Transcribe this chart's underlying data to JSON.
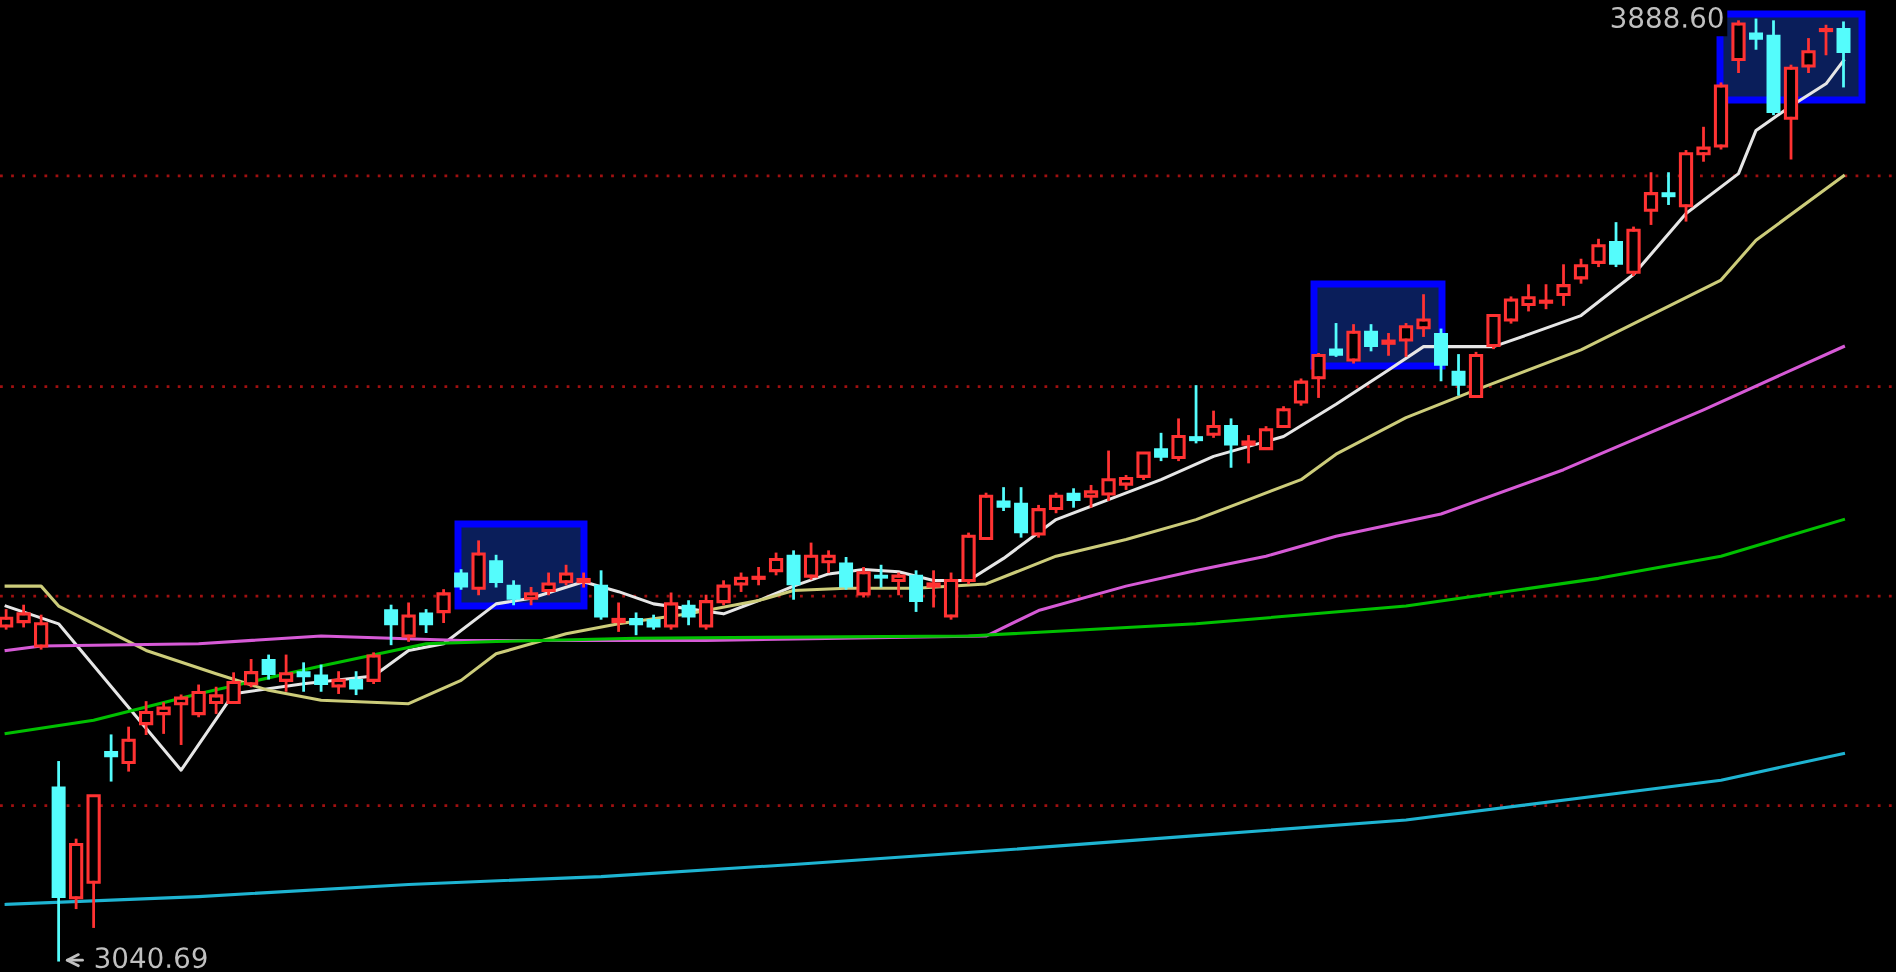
{
  "chart_data": {
    "type": "candlestick",
    "categories": [
      null,
      null,
      null,
      null,
      null,
      null,
      null,
      null,
      null,
      null,
      null,
      null,
      null,
      null,
      null,
      null,
      null,
      null,
      null,
      null,
      null,
      null,
      null,
      null,
      null,
      null,
      null,
      null,
      null,
      null,
      null,
      null,
      null,
      null,
      null,
      null,
      null,
      null,
      null,
      null,
      null,
      null,
      null,
      null,
      null,
      null,
      null,
      null,
      null,
      null,
      null,
      null,
      null,
      null,
      null,
      null,
      null,
      null,
      null,
      null,
      null,
      null,
      null,
      null,
      null,
      null,
      null,
      null,
      null,
      null,
      null,
      null,
      null,
      null,
      null,
      null,
      null,
      null,
      null,
      null,
      null,
      null,
      null,
      null,
      null,
      null,
      null,
      null,
      null,
      null,
      null,
      null,
      null,
      null,
      null,
      null,
      null,
      null,
      null,
      null,
      null,
      null,
      null,
      null,
      null,
      null
    ],
    "ohlc": [
      [
        3342,
        3356,
        3340,
        3349
      ],
      [
        3346,
        3360,
        3342,
        3353
      ],
      [
        3324,
        3351,
        3322,
        3344
      ],
      [
        3196,
        3219,
        3040.69,
        3098
      ],
      [
        3097,
        3149,
        3088,
        3145
      ],
      [
        3111,
        3189,
        3071,
        3189
      ],
      [
        3228,
        3243,
        3203,
        3225
      ],
      [
        3219,
        3250,
        3212,
        3239
      ],
      [
        3254,
        3273,
        3245,
        3264
      ],
      [
        3263,
        3272,
        3246,
        3268
      ],
      [
        3272,
        3279,
        3236,
        3277
      ],
      [
        3263,
        3288,
        3261,
        3282
      ],
      [
        3273,
        3286,
        3264,
        3279
      ],
      [
        3273,
        3299,
        3273,
        3291
      ],
      [
        3290,
        3311,
        3288,
        3300
      ],
      [
        3311,
        3315,
        3295,
        3299
      ],
      [
        3293,
        3315,
        3284,
        3299
      ],
      [
        3300,
        3308,
        3284,
        3297
      ],
      [
        3297,
        3306,
        3284,
        3290
      ],
      [
        3288,
        3300,
        3282,
        3293
      ],
      [
        3293,
        3300,
        3281,
        3286
      ],
      [
        3293,
        3317,
        3291,
        3315
      ],
      [
        3356,
        3360,
        3326,
        3344
      ],
      [
        3333,
        3362,
        3329,
        3351
      ],
      [
        3353,
        3356,
        3337,
        3344
      ],
      [
        3355,
        3374,
        3346,
        3371
      ],
      [
        3389,
        3392,
        3376,
        3378
      ],
      [
        3376,
        3418,
        3371,
        3407
      ],
      [
        3400,
        3405,
        3378,
        3382
      ],
      [
        3378,
        3382,
        3362,
        3367
      ],
      [
        3367,
        3376,
        3362,
        3371
      ],
      [
        3374,
        3389,
        3371,
        3380
      ],
      [
        3382,
        3396,
        3380,
        3389
      ],
      [
        3382,
        3389,
        3378,
        3384
      ],
      [
        3378,
        3391,
        3349,
        3351
      ],
      [
        3346,
        3362,
        3338,
        3348
      ],
      [
        3348,
        3353,
        3335,
        3344
      ],
      [
        3347,
        3351,
        3340,
        3342
      ],
      [
        3342,
        3371,
        3340,
        3362
      ],
      [
        3360,
        3364,
        3344,
        3351
      ],
      [
        3342,
        3369,
        3340,
        3364
      ],
      [
        3364,
        3382,
        3362,
        3378
      ],
      [
        3380,
        3389,
        3374,
        3385
      ],
      [
        3385,
        3394,
        3380,
        3386
      ],
      [
        3392,
        3407,
        3389,
        3402
      ],
      [
        3405,
        3409,
        3367,
        3380
      ],
      [
        3387,
        3416,
        3385,
        3405
      ],
      [
        3400,
        3409,
        3391,
        3405
      ],
      [
        3398,
        3403,
        3376,
        3378
      ],
      [
        3371,
        3394,
        3369,
        3390
      ],
      [
        3387,
        3396,
        3378,
        3386
      ],
      [
        3383,
        3389,
        3371,
        3387
      ],
      [
        3387,
        3391,
        3356,
        3365
      ],
      [
        3378,
        3391,
        3360,
        3380
      ],
      [
        3351,
        3389,
        3349,
        3383
      ],
      [
        3383,
        3425,
        3381,
        3423
      ],
      [
        3421,
        3461,
        3421,
        3459
      ],
      [
        3454,
        3466,
        3447,
        3450
      ],
      [
        3452,
        3466,
        3423,
        3427
      ],
      [
        3425,
        3450,
        3423,
        3447
      ],
      [
        3448,
        3461,
        3445,
        3459
      ],
      [
        3461,
        3465,
        3450,
        3456
      ],
      [
        3459,
        3468,
        3450,
        3463
      ],
      [
        3461,
        3499,
        3456,
        3474
      ],
      [
        3470,
        3477,
        3466,
        3475
      ],
      [
        3477,
        3498,
        3475,
        3498
      ],
      [
        3501,
        3515,
        3492,
        3495
      ],
      [
        3494,
        3528,
        3492,
        3513
      ],
      [
        3512,
        3558,
        3508,
        3510
      ],
      [
        3515,
        3535,
        3513,
        3522
      ],
      [
        3522,
        3528,
        3486,
        3506
      ],
      [
        3506,
        3513,
        3490,
        3508
      ],
      [
        3502,
        3521,
        3502,
        3519
      ],
      [
        3522,
        3539,
        3522,
        3537
      ],
      [
        3544,
        3564,
        3542,
        3562
      ],
      [
        3566,
        3587,
        3549,
        3586
      ],
      [
        3591,
        3614,
        3586,
        3587
      ],
      [
        3582,
        3613,
        3580,
        3607
      ],
      [
        3607,
        3613,
        3591,
        3595
      ],
      [
        3597,
        3605,
        3587,
        3599
      ],
      [
        3600,
        3614,
        3586,
        3612
      ],
      [
        3611,
        3640,
        3604,
        3618
      ],
      [
        3605,
        3609,
        3564,
        3578
      ],
      [
        3571,
        3586,
        3551,
        3560
      ],
      [
        3549,
        3588,
        3549,
        3586
      ],
      [
        3595,
        3622,
        3593,
        3622
      ],
      [
        3618,
        3638,
        3616,
        3636
      ],
      [
        3632,
        3649,
        3627,
        3638
      ],
      [
        3634,
        3649,
        3629,
        3635
      ],
      [
        3641,
        3667,
        3632,
        3649
      ],
      [
        3656,
        3672,
        3652,
        3667
      ],
      [
        3670,
        3690,
        3667,
        3685
      ],
      [
        3688,
        3705,
        3667,
        3669
      ],
      [
        3661,
        3701,
        3659,
        3699
      ],
      [
        3717,
        3750,
        3705,
        3732
      ],
      [
        3732,
        3750,
        3723,
        3730
      ],
      [
        3721,
        3770,
        3708,
        3768
      ],
      [
        3768,
        3791,
        3762,
        3773
      ],
      [
        3775,
        3831,
        3773,
        3829
      ],
      [
        3853,
        3887,
        3842,
        3885
      ],
      [
        3876,
        3888.6,
        3863,
        3872
      ],
      [
        3874,
        3887,
        3804,
        3806
      ],
      [
        3800,
        3847,
        3764,
        3845
      ],
      [
        3847,
        3871,
        3842,
        3860
      ],
      [
        3879,
        3883,
        3858,
        3880
      ],
      [
        3880,
        3886,
        3829,
        3860
      ]
    ],
    "series": [
      {
        "type": "line",
        "color": "#e6e6e6",
        "values": [
          3360,
          null,
          null,
          3344,
          null,
          null,
          null,
          null,
          null,
          null,
          3212,
          null,
          null,
          3281,
          null,
          null,
          null,
          3290,
          null,
          null,
          null,
          3297,
          null,
          3320,
          null,
          3326,
          null,
          null,
          3362,
          null,
          3367,
          null,
          null,
          3382,
          null,
          3373,
          null,
          3362,
          null,
          null,
          null,
          3353,
          null,
          3365,
          null,
          3378,
          null,
          3389,
          null,
          3393,
          null,
          3391,
          null,
          3383,
          null,
          3383,
          null,
          3403,
          null,
          null,
          3438,
          null,
          null,
          3456,
          null,
          null,
          3474,
          null,
          null,
          3495,
          null,
          null,
          null,
          3513,
          null,
          null,
          3542,
          null,
          null,
          3573,
          null,
          3594,
          null,
          null,
          null,
          3594,
          null,
          3605,
          null,
          null,
          3622,
          null,
          null,
          3659,
          null,
          null,
          3714,
          null,
          null,
          3750,
          3789,
          null,
          3811,
          null,
          3831,
          3852
        ]
      },
      {
        "type": "line",
        "color": "#cccc7a",
        "values": [
          3378,
          null,
          3378,
          3360,
          null,
          null,
          null,
          null,
          3320,
          null,
          null,
          null,
          3299,
          null,
          null,
          3284,
          null,
          null,
          3275,
          null,
          null,
          null,
          null,
          3272,
          null,
          null,
          3293,
          null,
          3317,
          null,
          null,
          null,
          3335,
          null,
          null,
          3344,
          null,
          null,
          null,
          3353,
          null,
          null,
          null,
          3365,
          null,
          3374,
          null,
          null,
          3376,
          null,
          null,
          null,
          3376,
          null,
          null,
          null,
          3380,
          null,
          null,
          null,
          3405,
          null,
          null,
          null,
          3420,
          null,
          null,
          null,
          3438,
          null,
          null,
          3456,
          null,
          null,
          3474,
          null,
          3497,
          null,
          null,
          null,
          3530,
          null,
          null,
          null,
          3555,
          null,
          null,
          null,
          null,
          null,
          3591,
          null,
          null,
          null,
          null,
          null,
          null,
          null,
          3654,
          null,
          3690,
          null,
          null,
          null,
          null,
          3748
        ]
      },
      {
        "type": "line",
        "color": "#d65ad6",
        "values": [
          3320,
          null,
          3324,
          null,
          null,
          null,
          null,
          null,
          null,
          null,
          null,
          3326,
          null,
          null,
          null,
          null,
          null,
          null,
          3333,
          null,
          null,
          null,
          null,
          null,
          null,
          null,
          3329,
          null,
          null,
          null,
          null,
          null,
          null,
          null,
          null,
          null,
          null,
          null,
          null,
          null,
          3329,
          null,
          null,
          null,
          null,
          null,
          null,
          null,
          null,
          null,
          null,
          null,
          null,
          null,
          null,
          null,
          3333,
          null,
          null,
          3356,
          null,
          null,
          null,
          null,
          3378,
          null,
          null,
          null,
          3392,
          null,
          null,
          null,
          3405,
          null,
          null,
          null,
          3423,
          null,
          null,
          null,
          null,
          null,
          3443,
          null,
          null,
          null,
          null,
          null,
          null,
          3483,
          null,
          null,
          null,
          null,
          null,
          null,
          null,
          3537,
          null,
          null,
          null,
          null,
          null,
          null,
          null,
          3594
        ]
      },
      {
        "type": "line",
        "color": "#00c000",
        "values": [
          3245,
          null,
          null,
          null,
          null,
          3257,
          null,
          null,
          null,
          null,
          null,
          3281,
          null,
          null,
          null,
          null,
          null,
          null,
          3306,
          null,
          null,
          null,
          null,
          null,
          3326,
          null,
          null,
          null,
          3328,
          null,
          null,
          null,
          null,
          null,
          null,
          null,
          3331,
          null,
          null,
          null,
          null,
          null,
          null,
          null,
          null,
          null,
          null,
          null,
          null,
          null,
          null,
          null,
          null,
          null,
          null,
          3333,
          null,
          null,
          null,
          null,
          null,
          null,
          null,
          null,
          null,
          null,
          null,
          null,
          3344,
          null,
          null,
          null,
          null,
          null,
          null,
          null,
          null,
          null,
          null,
          null,
          3360,
          null,
          null,
          null,
          null,
          null,
          null,
          null,
          null,
          null,
          null,
          3385,
          null,
          null,
          null,
          null,
          null,
          null,
          3405,
          null,
          null,
          null,
          null,
          null,
          null,
          3438
        ]
      },
      {
        "type": "line",
        "color": "#1eb4d2",
        "values": [
          3091,
          null,
          null,
          null,
          null,
          null,
          null,
          null,
          null,
          null,
          null,
          3098,
          null,
          null,
          null,
          null,
          null,
          null,
          null,
          null,
          null,
          null,
          null,
          3109,
          null,
          null,
          null,
          null,
          null,
          null,
          null,
          null,
          null,
          null,
          3116,
          null,
          null,
          null,
          null,
          null,
          null,
          null,
          null,
          null,
          null,
          3127,
          null,
          null,
          null,
          null,
          null,
          null,
          null,
          null,
          null,
          null,
          null,
          3140,
          null,
          null,
          null,
          null,
          null,
          null,
          null,
          null,
          null,
          null,
          3153,
          null,
          null,
          null,
          null,
          null,
          null,
          null,
          null,
          null,
          null,
          null,
          3167,
          null,
          null,
          null,
          null,
          null,
          null,
          null,
          null,
          null,
          null,
          3189,
          null,
          null,
          null,
          null,
          null,
          null,
          3203,
          null,
          null,
          null,
          null,
          null,
          null,
          3227
        ]
      }
    ],
    "ylim": [
      3030,
      3906.6
    ],
    "yticks": [
      {
        "value": 3180,
        "label": null
      },
      {
        "value": 3369,
        "label": null
      },
      {
        "value": 3558,
        "label": null
      },
      {
        "value": 3748,
        "label": null
      }
    ],
    "grid": "y",
    "annotations": [
      "3888.60",
      "3040.69"
    ]
  }
}
